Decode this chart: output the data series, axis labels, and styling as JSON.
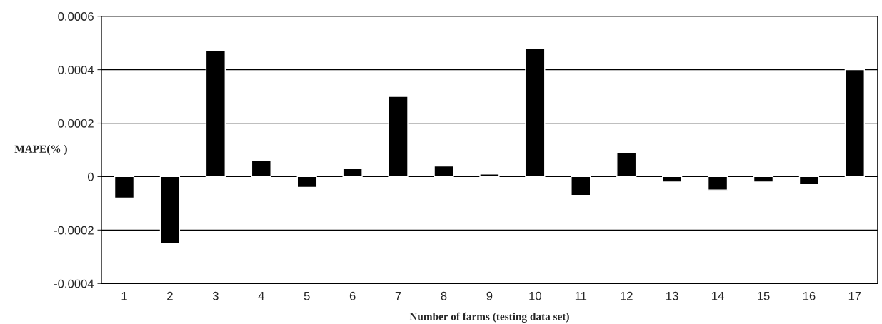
{
  "chart_data": {
    "type": "bar",
    "xlabel": "Number of farms (testing data set)",
    "ylabel": "MAPE(% )",
    "categories": [
      "1",
      "2",
      "3",
      "4",
      "5",
      "6",
      "7",
      "8",
      "9",
      "10",
      "11",
      "12",
      "13",
      "14",
      "15",
      "16",
      "17"
    ],
    "values": [
      -8e-05,
      -0.00025,
      0.00047,
      6e-05,
      -4e-05,
      3e-05,
      0.0003,
      4e-05,
      1e-05,
      0.00048,
      -7e-05,
      9e-05,
      -2e-05,
      -5e-05,
      -2e-05,
      -3e-05,
      0.0004
    ],
    "color": "#000000",
    "ylim": [
      -0.0004,
      0.0006
    ],
    "yticks": [
      -0.0004,
      -0.0002,
      0,
      0.0002,
      0.0004,
      0.0006
    ],
    "grid": "y"
  }
}
